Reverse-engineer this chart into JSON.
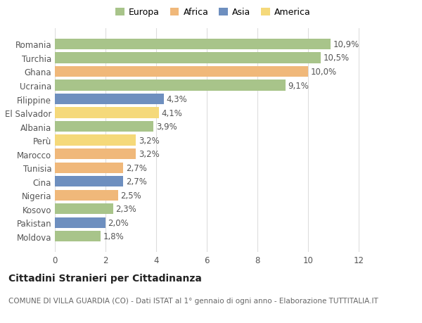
{
  "categories": [
    "Romania",
    "Turchia",
    "Ghana",
    "Ucraina",
    "Filippine",
    "El Salvador",
    "Albania",
    "Perù",
    "Marocco",
    "Tunisia",
    "Cina",
    "Nigeria",
    "Kosovo",
    "Pakistan",
    "Moldova"
  ],
  "values": [
    10.9,
    10.5,
    10.0,
    9.1,
    4.3,
    4.1,
    3.9,
    3.2,
    3.2,
    2.7,
    2.7,
    2.5,
    2.3,
    2.0,
    1.8
  ],
  "labels": [
    "10,9%",
    "10,5%",
    "10,0%",
    "9,1%",
    "4,3%",
    "4,1%",
    "3,9%",
    "3,2%",
    "3,2%",
    "2,7%",
    "2,7%",
    "2,5%",
    "2,3%",
    "2,0%",
    "1,8%"
  ],
  "colors": [
    "#a8c48a",
    "#a8c48a",
    "#f0b87a",
    "#a8c48a",
    "#6e8fbf",
    "#f5d97a",
    "#a8c48a",
    "#f5d97a",
    "#f0b87a",
    "#f0b87a",
    "#6e8fbf",
    "#f0b87a",
    "#a8c48a",
    "#6e8fbf",
    "#a8c48a"
  ],
  "continent_colors": {
    "Europa": "#a8c48a",
    "Africa": "#f0b87a",
    "Asia": "#6e8fbf",
    "America": "#f5d97a"
  },
  "xlim": [
    0,
    12
  ],
  "xticks": [
    0,
    2,
    4,
    6,
    8,
    10,
    12
  ],
  "title": "Cittadini Stranieri per Cittadinanza",
  "subtitle": "COMUNE DI VILLA GUARDIA (CO) - Dati ISTAT al 1° gennaio di ogni anno - Elaborazione TUTTITALIA.IT",
  "background_color": "#ffffff",
  "bar_height": 0.78,
  "grid_color": "#dddddd",
  "label_fontsize": 8.5,
  "tick_fontsize": 8.5,
  "title_fontsize": 10,
  "subtitle_fontsize": 7.5
}
